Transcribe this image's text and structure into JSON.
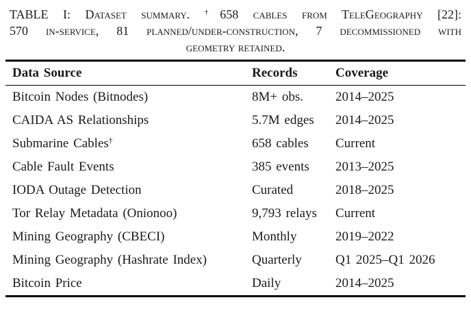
{
  "caption": {
    "label": "TABLE I:",
    "intro": "Dataset summary.",
    "dagger": "†",
    "line1_rest": "658 cables from TeleGeography [22]:",
    "line2": "570 in-service, 81 planned/under-construction, 7 decommissioned with",
    "line3": "geometry retained."
  },
  "table": {
    "columns": [
      "Data Source",
      "Records",
      "Coverage"
    ],
    "rows": [
      {
        "source": "Bitcoin Nodes (Bitnodes)",
        "records": "8M+ obs.",
        "coverage": "2014–2025"
      },
      {
        "source": "CAIDA AS Relationships",
        "records": "5.7M edges",
        "coverage": "2014–2025"
      },
      {
        "source": "Submarine Cables",
        "source_sup": "†",
        "records": "658 cables",
        "coverage": "Current"
      },
      {
        "source": "Cable Fault Events",
        "records": "385 events",
        "coverage": "2013–2025"
      },
      {
        "source": "IODA Outage Detection",
        "records": "Curated",
        "coverage": "2018–2025"
      },
      {
        "source": "Tor Relay Metadata (Onionoo)",
        "records": "9,793 relays",
        "coverage": "Current"
      },
      {
        "source": "Mining Geography (CBECI)",
        "records": "Monthly",
        "coverage": "2019–2022"
      },
      {
        "source": "Mining Geography (Hashrate Index)",
        "records": "Quarterly",
        "coverage": "Q1 2025–Q1 2026"
      },
      {
        "source": "Bitcoin Price",
        "records": "Daily",
        "coverage": "2014–2025"
      }
    ]
  },
  "colors": {
    "background": "#ffffff",
    "text": "#1a1a1a",
    "rule": "#000000"
  }
}
